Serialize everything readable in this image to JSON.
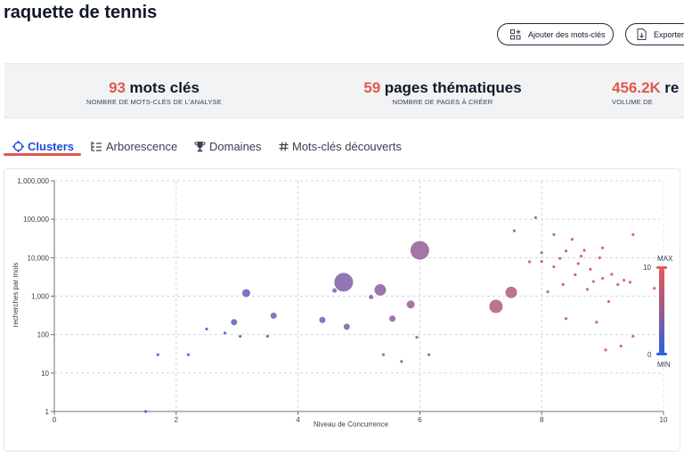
{
  "page": {
    "title": "raquette de tennis"
  },
  "toolbar": {
    "add_keywords_label": "Ajouter des mots-clés",
    "export_label": "Exporter"
  },
  "stats": [
    {
      "value": "93",
      "label": "mots clés",
      "sub": "NOMBRE DE MOTS-CLÉS DE L'ANALYSE"
    },
    {
      "value": "59",
      "label": "pages thématiques",
      "sub": "NOMBRE DE PAGES À CRÉER"
    },
    {
      "value": "456.2K",
      "label": "re",
      "sub": "VOLUME DE"
    }
  ],
  "tabs": [
    {
      "label": "Clusters",
      "icon": "target-icon",
      "active": true
    },
    {
      "label": "Arborescence",
      "icon": "tree-icon",
      "active": false
    },
    {
      "label": "Domaines",
      "icon": "trophy-icon",
      "active": false
    },
    {
      "label": "Mots-clés découverts",
      "icon": "hashtag-icon",
      "active": false
    }
  ],
  "colors": {
    "accent": "#e05a4a",
    "active_tab": "#1d4ed8",
    "gradient_max": "#e05a5a",
    "gradient_min": "#2563eb"
  },
  "chart_data": {
    "type": "scatter",
    "xlabel": "Niveau de Concurrence",
    "ylabel": "recherches par mois",
    "xlim": [
      0,
      10
    ],
    "ylim": [
      1,
      1000000
    ],
    "y_scale": "log",
    "grid": true,
    "x_ticks": [
      "0",
      "2",
      "4",
      "6",
      "8",
      "10"
    ],
    "y_ticks": [
      "1",
      "10",
      "100",
      "1,000",
      "10,000",
      "100,000",
      "1,000,000"
    ],
    "color_legend": {
      "max_label": "MAX",
      "min_label": "MIN",
      "max_value": "10",
      "min_value": "0"
    },
    "points": [
      {
        "x": 1.5,
        "y": 1,
        "size": 2,
        "c": 1.5
      },
      {
        "x": 1.7,
        "y": 30,
        "size": 2,
        "c": 1.7
      },
      {
        "x": 2.2,
        "y": 30,
        "size": 2,
        "c": 2.2
      },
      {
        "x": 2.5,
        "y": 140,
        "size": 2,
        "c": 2.5
      },
      {
        "x": 2.8,
        "y": 110,
        "size": 2,
        "c": 2.8
      },
      {
        "x": 2.95,
        "y": 210,
        "size": 4,
        "c": 3.0
      },
      {
        "x": 3.05,
        "y": 90,
        "size": 2,
        "c": 3.0
      },
      {
        "x": 3.15,
        "y": 1200,
        "size": 5,
        "c": 3.2
      },
      {
        "x": 3.5,
        "y": 90,
        "size": 2,
        "c": 3.5
      },
      {
        "x": 3.6,
        "y": 310,
        "size": 4,
        "c": 3.6
      },
      {
        "x": 4.4,
        "y": 240,
        "size": 4,
        "c": 4.4
      },
      {
        "x": 4.6,
        "y": 1400,
        "size": 3,
        "c": 4.6
      },
      {
        "x": 4.75,
        "y": 2300,
        "size": 11,
        "c": 4.7
      },
      {
        "x": 4.8,
        "y": 160,
        "size": 4,
        "c": 4.8
      },
      {
        "x": 5.2,
        "y": 950,
        "size": 3,
        "c": 5.2
      },
      {
        "x": 5.35,
        "y": 1450,
        "size": 7,
        "c": 5.4
      },
      {
        "x": 5.4,
        "y": 30,
        "size": 2,
        "c": 5.4
      },
      {
        "x": 5.55,
        "y": 260,
        "size": 4,
        "c": 5.6
      },
      {
        "x": 5.7,
        "y": 20,
        "size": 2,
        "c": 5.7
      },
      {
        "x": 5.85,
        "y": 610,
        "size": 5,
        "c": 5.9
      },
      {
        "x": 5.95,
        "y": 85,
        "size": 2,
        "c": 6.0
      },
      {
        "x": 6.0,
        "y": 15500,
        "size": 11,
        "c": 6.0
      },
      {
        "x": 6.15,
        "y": 30,
        "size": 2,
        "c": 6.2
      },
      {
        "x": 7.25,
        "y": 540,
        "size": 8,
        "c": 7.3
      },
      {
        "x": 7.5,
        "y": 1250,
        "size": 7,
        "c": 7.5
      },
      {
        "x": 7.55,
        "y": 50000,
        "size": 2,
        "c": 7.6
      },
      {
        "x": 7.8,
        "y": 7800,
        "size": 2,
        "c": 7.8
      },
      {
        "x": 7.9,
        "y": 110000,
        "size": 2,
        "c": 7.9
      },
      {
        "x": 8.0,
        "y": 8000,
        "size": 2,
        "c": 8.0
      },
      {
        "x": 8.0,
        "y": 13500,
        "size": 2,
        "c": 8.0
      },
      {
        "x": 8.1,
        "y": 1300,
        "size": 2,
        "c": 8.1
      },
      {
        "x": 8.2,
        "y": 40000,
        "size": 2,
        "c": 8.2
      },
      {
        "x": 8.2,
        "y": 5800,
        "size": 2,
        "c": 8.2
      },
      {
        "x": 8.3,
        "y": 9600,
        "size": 2,
        "c": 8.3
      },
      {
        "x": 8.35,
        "y": 2000,
        "size": 2,
        "c": 8.4
      },
      {
        "x": 8.4,
        "y": 15000,
        "size": 2,
        "c": 8.4
      },
      {
        "x": 8.4,
        "y": 260,
        "size": 2,
        "c": 8.4
      },
      {
        "x": 8.5,
        "y": 30000,
        "size": 2,
        "c": 8.5
      },
      {
        "x": 8.55,
        "y": 3600,
        "size": 2,
        "c": 8.5
      },
      {
        "x": 8.6,
        "y": 7000,
        "size": 2,
        "c": 8.6
      },
      {
        "x": 8.65,
        "y": 11000,
        "size": 2,
        "c": 8.7
      },
      {
        "x": 8.7,
        "y": 15500,
        "size": 2,
        "c": 8.7
      },
      {
        "x": 8.75,
        "y": 1500,
        "size": 2,
        "c": 8.7
      },
      {
        "x": 8.8,
        "y": 5000,
        "size": 2,
        "c": 8.8
      },
      {
        "x": 8.85,
        "y": 2400,
        "size": 2,
        "c": 8.9
      },
      {
        "x": 8.9,
        "y": 210,
        "size": 2,
        "c": 8.9
      },
      {
        "x": 8.95,
        "y": 10000,
        "size": 2,
        "c": 9.0
      },
      {
        "x": 9.0,
        "y": 2900,
        "size": 2,
        "c": 9.0
      },
      {
        "x": 9.0,
        "y": 18000,
        "size": 2,
        "c": 9.0
      },
      {
        "x": 9.05,
        "y": 40,
        "size": 2,
        "c": 9.0
      },
      {
        "x": 9.1,
        "y": 720,
        "size": 2,
        "c": 9.1
      },
      {
        "x": 9.15,
        "y": 3700,
        "size": 2,
        "c": 9.1
      },
      {
        "x": 9.25,
        "y": 2000,
        "size": 2,
        "c": 9.2
      },
      {
        "x": 9.3,
        "y": 50,
        "size": 2,
        "c": 9.3
      },
      {
        "x": 9.35,
        "y": 2600,
        "size": 2,
        "c": 9.3
      },
      {
        "x": 9.45,
        "y": 2300,
        "size": 2,
        "c": 9.4
      },
      {
        "x": 9.5,
        "y": 90,
        "size": 2,
        "c": 9.5
      },
      {
        "x": 9.5,
        "y": 40000,
        "size": 2,
        "c": 9.5
      },
      {
        "x": 9.85,
        "y": 1600,
        "size": 2,
        "c": 9.8
      }
    ]
  }
}
